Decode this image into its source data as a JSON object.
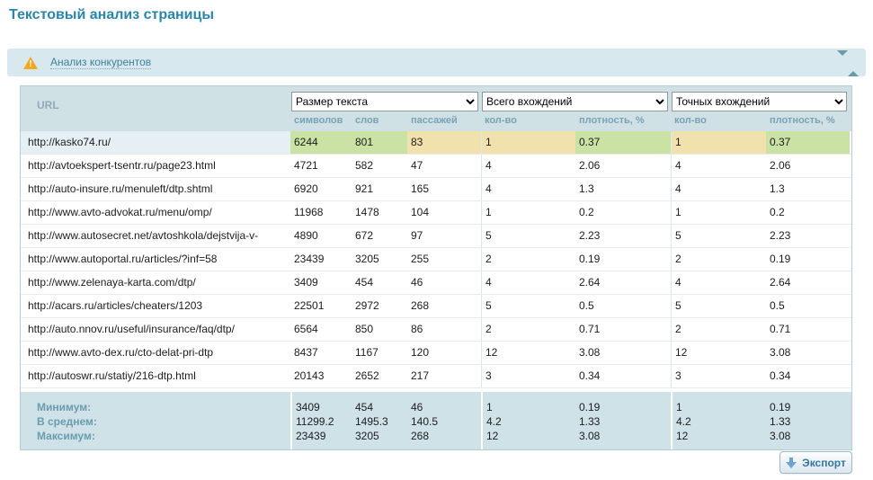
{
  "page": {
    "title": "Текстовый анализ страницы"
  },
  "panel": {
    "link_label": "Анализ конкурентов",
    "warning_icon": "warning-triangle",
    "collapse_icon": "collapse-chevrons"
  },
  "table": {
    "url_header": "URL",
    "groups": [
      {
        "select_value": "Размер текста",
        "columns": [
          "символов",
          "слов",
          "пассажей"
        ]
      },
      {
        "select_value": "Всего вхождений",
        "columns": [
          "кол-во",
          "плотность, %"
        ]
      },
      {
        "select_value": "Точных вхождений",
        "columns": [
          "кол-во",
          "плотность, %"
        ]
      }
    ],
    "rows": [
      {
        "url": "http://kasko74.ru/",
        "values": [
          "6244",
          "801",
          "83",
          "1",
          "0.37",
          "1",
          "0.37"
        ],
        "highlighted": true
      },
      {
        "url": "http://avtoekspert-tsentr.ru/page23.html",
        "values": [
          "4721",
          "582",
          "47",
          "4",
          "2.06",
          "4",
          "2.06"
        ],
        "highlighted": false
      },
      {
        "url": "http://auto-insure.ru/menuleft/dtp.shtml",
        "values": [
          "6920",
          "921",
          "165",
          "4",
          "1.3",
          "4",
          "1.3"
        ],
        "highlighted": false
      },
      {
        "url": "http://www.avto-advokat.ru/menu/omp/",
        "values": [
          "11968",
          "1478",
          "104",
          "1",
          "0.2",
          "1",
          "0.2"
        ],
        "highlighted": false
      },
      {
        "url": "http://www.autosecret.net/avtoshkola/dejstvija-v-",
        "values": [
          "4890",
          "672",
          "97",
          "5",
          "2.23",
          "5",
          "2.23"
        ],
        "highlighted": false
      },
      {
        "url": "http://www.autoportal.ru/articles/?inf=58",
        "values": [
          "23439",
          "3205",
          "255",
          "2",
          "0.19",
          "2",
          "0.19"
        ],
        "highlighted": false
      },
      {
        "url": "http://www.zelenaya-karta.com/dtp/",
        "values": [
          "3409",
          "454",
          "46",
          "4",
          "2.64",
          "4",
          "2.64"
        ],
        "highlighted": false
      },
      {
        "url": "http://acars.ru/articles/cheaters/1203",
        "values": [
          "22501",
          "2972",
          "268",
          "5",
          "0.5",
          "5",
          "0.5"
        ],
        "highlighted": false
      },
      {
        "url": "http://auto.nnov.ru/useful/insurance/faq/dtp/",
        "values": [
          "6564",
          "850",
          "86",
          "2",
          "0.71",
          "2",
          "0.71"
        ],
        "highlighted": false
      },
      {
        "url": "http://www.avto-dex.ru/cto-delat-pri-dtp",
        "values": [
          "8437",
          "1167",
          "120",
          "12",
          "3.08",
          "12",
          "3.08"
        ],
        "highlighted": false
      },
      {
        "url": "http://autoswr.ru/statiy/216-dtp.html",
        "values": [
          "20143",
          "2652",
          "217",
          "3",
          "0.34",
          "3",
          "0.34"
        ],
        "highlighted": false
      }
    ],
    "summary": {
      "labels": [
        "Минимум:",
        "В среднем:",
        "Максимум:"
      ],
      "min": [
        "3409",
        "454",
        "46",
        "1",
        "0.19",
        "1",
        "0.19"
      ],
      "avg": [
        "11299.2",
        "1495.3",
        "140.5",
        "4.2",
        "1.33",
        "4.2",
        "1.33"
      ],
      "max": [
        "23439",
        "3205",
        "268",
        "12",
        "3.08",
        "12",
        "3.08"
      ]
    }
  },
  "export_button": {
    "label": "Экспорт",
    "icon": "download-arrow"
  },
  "colors": {
    "title": "#2a86a8",
    "panel_bg": "#d7e8ef",
    "header_bg": "#d0e1e6",
    "footer_bg": "#cfe2e7",
    "highlight_green": "#cae2a4",
    "highlight_tan": "#f1e1ad",
    "highlight_row_bg": "#e6eff3",
    "warning_orange": "#f3a81f"
  }
}
